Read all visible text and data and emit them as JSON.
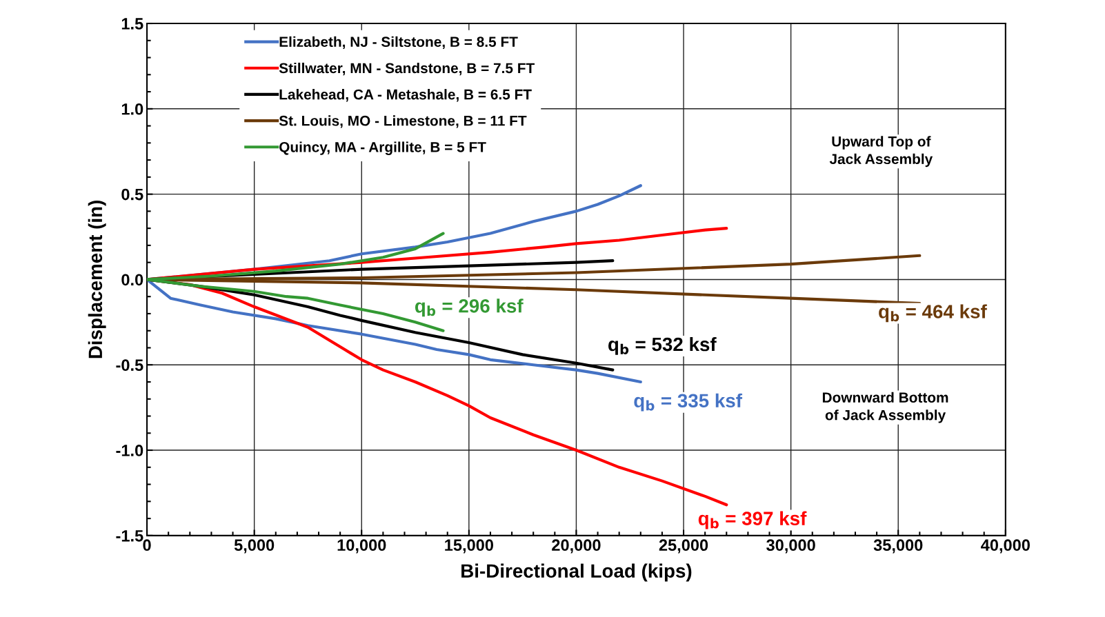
{
  "chart_data": {
    "type": "line",
    "xlabel": "Bi-Directional Load (kips)",
    "ylabel": "Displacement (in)",
    "xlim": [
      0,
      40000
    ],
    "ylim": [
      -1.5,
      1.5
    ],
    "xticks": [
      0,
      {
        "value": 5000,
        "label": "5,000"
      },
      {
        "value": 10000,
        "label": "10,000"
      },
      {
        "value": 15000,
        "label": "15,000"
      },
      {
        "value": 20000,
        "label": "20,000"
      },
      {
        "value": 25000,
        "label": "25,000"
      },
      {
        "value": 30000,
        "label": "30,000"
      },
      {
        "value": 35000,
        "label": "35,000"
      },
      {
        "value": 40000,
        "label": "40,000"
      }
    ],
    "yticks": [
      -1.5,
      {
        "value": -1.0,
        "label": "-1.0"
      },
      -0.5,
      {
        "value": 0.0,
        "label": "0.0"
      },
      0.5,
      {
        "value": 1.0,
        "label": "1.0"
      },
      1.5
    ],
    "grid": true,
    "legend": "top left",
    "marker": "none",
    "line_style": "solid",
    "series": [
      {
        "name": "Elizabeth, NJ - Siltstone, B = 8.5 FT",
        "color": "#4472c4",
        "x": [
          0,
          5000,
          8500,
          10000,
          12500,
          14000,
          16000,
          18000,
          20000,
          21000,
          22000,
          23000
        ],
        "values": [
          0,
          0.06,
          0.11,
          0.15,
          0.19,
          0.22,
          0.27,
          0.34,
          0.4,
          0.44,
          0.49,
          0.55
        ]
      },
      {
        "color": "#4472c4",
        "x": [
          0,
          1100,
          2500,
          4000,
          6000,
          7500,
          10000,
          12500,
          13500,
          15000,
          16000,
          18000,
          20000,
          21000,
          23000
        ],
        "values": [
          0,
          -0.11,
          -0.15,
          -0.19,
          -0.23,
          -0.27,
          -0.32,
          -0.38,
          -0.41,
          -0.44,
          -0.47,
          -0.5,
          -0.53,
          -0.55,
          -0.6
        ]
      },
      {
        "name": "Stillwater, MN - Sandstone, B = 7.5 FT",
        "color": "#ff0000",
        "x": [
          0,
          5000,
          10000,
          13000,
          16000,
          18500,
          20000,
          22000,
          24000,
          26000,
          27000
        ],
        "values": [
          0,
          0.06,
          0.1,
          0.13,
          0.16,
          0.19,
          0.21,
          0.23,
          0.26,
          0.29,
          0.3
        ]
      },
      {
        "color": "#ff0000",
        "x": [
          0,
          2000,
          3500,
          5000,
          7500,
          10000,
          11000,
          12500,
          14000,
          15000,
          16000,
          18000,
          20000,
          22000,
          24000,
          26000,
          27000
        ],
        "values": [
          0,
          -0.03,
          -0.08,
          -0.16,
          -0.28,
          -0.47,
          -0.53,
          -0.6,
          -0.68,
          -0.74,
          -0.81,
          -0.91,
          -1.0,
          -1.1,
          -1.18,
          -1.27,
          -1.32
        ]
      },
      {
        "name": "Lakehead, CA - Metashale, B = 6.5 FT",
        "color": "#000000",
        "x": [
          0,
          5000,
          10000,
          15000,
          20000,
          21700
        ],
        "values": [
          0,
          0.03,
          0.06,
          0.08,
          0.1,
          0.11
        ]
      },
      {
        "color": "#000000",
        "x": [
          0,
          2500,
          5000,
          7500,
          9000,
          10000,
          12500,
          15000,
          17500,
          20000,
          21700
        ],
        "values": [
          0,
          -0.04,
          -0.09,
          -0.16,
          -0.21,
          -0.24,
          -0.31,
          -0.37,
          -0.44,
          -0.49,
          -0.53
        ]
      },
      {
        "name": "St. Louis, MO - Limestone, B = 11 FT",
        "color": "#6b3a0a",
        "x": [
          0,
          10000,
          20000,
          30000,
          36000
        ],
        "values": [
          0,
          0.01,
          0.04,
          0.09,
          0.14
        ]
      },
      {
        "color": "#6b3a0a",
        "x": [
          0,
          10000,
          20000,
          30000,
          36000
        ],
        "values": [
          0,
          -0.02,
          -0.06,
          -0.11,
          -0.14
        ]
      },
      {
        "name": "Quincy, MA - Argillite, B = 5 FT",
        "color": "#339933",
        "x": [
          0,
          3000,
          6000,
          9000,
          11000,
          12500,
          13800
        ],
        "values": [
          0,
          0.02,
          0.05,
          0.09,
          0.13,
          0.18,
          0.27
        ]
      },
      {
        "color": "#339933",
        "x": [
          0,
          2500,
          5000,
          6500,
          7500,
          9000,
          11000,
          12500,
          13800
        ],
        "values": [
          0,
          -0.04,
          -0.07,
          -0.1,
          -0.11,
          -0.15,
          -0.2,
          -0.25,
          -0.3
        ]
      }
    ],
    "annotations": [
      "q$_{b}$ = 296 ksf",
      "q$_{b}$ = 532 ksf",
      "q$_{b}$ = 335 ksf",
      "q$_{b}$ = 397 ksf",
      "q$_{b}$ = 464 ksf",
      "Upward Top of\nJack Assembly",
      "Downward Bottom\nof Jack Assembly"
    ]
  }
}
